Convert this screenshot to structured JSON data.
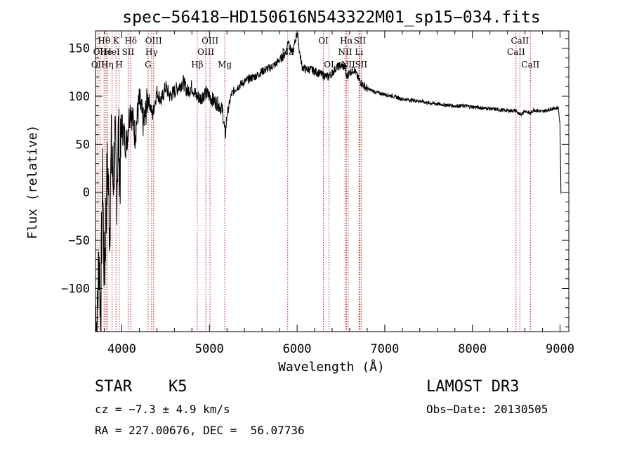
{
  "chart_data": {
    "type": "line",
    "title": "spec−56418−HD150616N543322M01_sp15−034.fits",
    "xlabel": "Wavelength (Å)",
    "ylabel": "Flux (relative)",
    "xlim": [
      3700,
      9100
    ],
    "ylim": [
      -145,
      168
    ],
    "xticks": [
      4000,
      5000,
      6000,
      7000,
      8000,
      9000
    ],
    "yticks": [
      -100,
      -50,
      0,
      50,
      100,
      150
    ],
    "xtick_labels": [
      "4000",
      "5000",
      "6000",
      "7000",
      "8000",
      "9000"
    ],
    "ytick_labels": [
      "−100",
      "−50",
      "0",
      "50",
      "100",
      "150"
    ],
    "series": [
      {
        "name": "spectrum",
        "x": [
          3700,
          3720,
          3740,
          3760,
          3780,
          3800,
          3820,
          3840,
          3860,
          3880,
          3900,
          3920,
          3940,
          3960,
          3980,
          4000,
          4050,
          4100,
          4150,
          4200,
          4250,
          4300,
          4350,
          4400,
          4450,
          4500,
          4550,
          4600,
          4650,
          4700,
          4750,
          4800,
          4850,
          4900,
          4950,
          5000,
          5050,
          5100,
          5150,
          5180,
          5200,
          5250,
          5300,
          5350,
          5400,
          5450,
          5500,
          5550,
          5600,
          5650,
          5700,
          5750,
          5800,
          5850,
          5880,
          5900,
          5920,
          5950,
          5980,
          6000,
          6030,
          6060,
          6100,
          6150,
          6200,
          6250,
          6300,
          6350,
          6400,
          6450,
          6500,
          6550,
          6563,
          6600,
          6650,
          6700,
          6750,
          6800,
          6900,
          7000,
          7100,
          7200,
          7300,
          7400,
          7500,
          7600,
          7700,
          7800,
          7900,
          8000,
          8100,
          8200,
          8300,
          8400,
          8500,
          8540,
          8600,
          8660,
          8700,
          8800,
          8900,
          8980,
          9000,
          9010
        ],
        "y": [
          -120,
          -140,
          -60,
          -130,
          20,
          -90,
          -20,
          30,
          -40,
          40,
          10,
          50,
          0,
          60,
          20,
          70,
          50,
          90,
          60,
          95,
          70,
          100,
          80,
          105,
          95,
          110,
          100,
          105,
          110,
          115,
          105,
          110,
          100,
          98,
          104,
          100,
          95,
          92,
          85,
          58,
          80,
          102,
          108,
          112,
          115,
          118,
          120,
          122,
          126,
          128,
          130,
          133,
          138,
          142,
          148,
          160,
          150,
          145,
          158,
          168,
          145,
          130,
          128,
          128,
          126,
          124,
          122,
          120,
          124,
          130,
          132,
          130,
          120,
          125,
          128,
          118,
          112,
          108,
          104,
          102,
          100,
          97,
          96,
          95,
          93,
          92,
          91,
          90,
          90,
          89,
          88,
          87,
          86,
          85,
          85,
          80,
          85,
          82,
          86,
          84,
          87,
          88,
          70,
          0
        ]
      }
    ],
    "lines": [
      {
        "wl": 3727,
        "label": "OII",
        "row": 3
      },
      {
        "wl": 3750,
        "label": "OII",
        "row": 2
      },
      {
        "wl": 3798,
        "label": "Hθ",
        "row": 1
      },
      {
        "wl": 3820,
        "label": "He",
        "row": 2
      },
      {
        "wl": 3835,
        "label": "Hη",
        "row": 3
      },
      {
        "wl": 3889,
        "label": "HeI",
        "row": 2
      },
      {
        "wl": 3934,
        "label": "K",
        "row": 1
      },
      {
        "wl": 3969,
        "label": "H",
        "row": 3
      },
      {
        "wl": 4072,
        "label": "SII",
        "row": 2
      },
      {
        "wl": 4102,
        "label": "Hδ",
        "row": 1
      },
      {
        "wl": 4300,
        "label": "G",
        "row": 3
      },
      {
        "wl": 4340,
        "label": "Hγ",
        "row": 2
      },
      {
        "wl": 4363,
        "label": "OIII",
        "row": 1
      },
      {
        "wl": 4861,
        "label": "Hβ",
        "row": 3
      },
      {
        "wl": 4959,
        "label": "OIII",
        "row": 2
      },
      {
        "wl": 5007,
        "label": "OIII",
        "row": 1
      },
      {
        "wl": 5175,
        "label": "Mg",
        "row": 3
      },
      {
        "wl": 5893,
        "label": "Na",
        "row": 2
      },
      {
        "wl": 6300,
        "label": "OI",
        "row": 1
      },
      {
        "wl": 6364,
        "label": "OI",
        "row": 3
      },
      {
        "wl": 6548,
        "label": "NII",
        "row": 2
      },
      {
        "wl": 6563,
        "label": "Hα",
        "row": 1
      },
      {
        "wl": 6583,
        "label": "NII",
        "row": 3
      },
      {
        "wl": 6707,
        "label": "Li",
        "row": 2
      },
      {
        "wl": 6716,
        "label": "SII",
        "row": 1
      },
      {
        "wl": 6731,
        "label": "SII",
        "row": 3
      },
      {
        "wl": 8498,
        "label": "CaII",
        "row": 2
      },
      {
        "wl": 8542,
        "label": "CaII",
        "row": 1
      },
      {
        "wl": 8662,
        "label": "CaII",
        "row": 3
      }
    ]
  },
  "info": {
    "class_label": "STAR",
    "subclass": "K5",
    "survey": "LAMOST DR3",
    "cz": "cz = −7.3 ± 4.9 km/s",
    "obs_date": "Obs−Date: 20130505",
    "coords": "RA = 227.00676, DEC =  56.07736"
  }
}
